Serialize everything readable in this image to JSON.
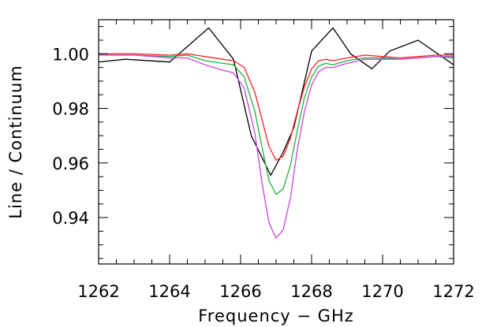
{
  "chart_data": {
    "type": "line",
    "title": "",
    "xlabel": "Frequency − GHz",
    "ylabel": "Line / Continuum",
    "xlim": [
      1262,
      1272
    ],
    "ylim": [
      0.923,
      1.0125
    ],
    "x_ticks": [
      1262,
      1264,
      1266,
      1268,
      1270,
      1272
    ],
    "x_tick_labels": [
      "1262",
      "1264",
      "1266",
      "1268",
      "1270",
      "1272"
    ],
    "y_ticks": [
      0.94,
      0.96,
      0.98,
      1.0
    ],
    "y_tick_labels": [
      "0.94",
      "0.96",
      "0.98",
      "1.00"
    ],
    "grid": false,
    "legend": "none",
    "series": [
      {
        "color": "#000000",
        "x": [
          1262.0,
          1262.75,
          1264.0,
          1265.1,
          1265.8,
          1266.3,
          1266.85,
          1267.2,
          1267.5,
          1268.0,
          1268.6,
          1269.1,
          1269.7,
          1270.2,
          1271.0,
          1272.0
        ],
        "y": [
          0.997,
          0.998,
          0.997,
          1.0095,
          0.998,
          0.97,
          0.9555,
          0.964,
          0.973,
          1.001,
          1.0095,
          1.0,
          0.9945,
          1.001,
          1.005,
          0.996
        ]
      },
      {
        "color": "#ff2020",
        "x": [
          1262.0,
          1263.0,
          1264.0,
          1264.5,
          1265.0,
          1265.5,
          1265.8,
          1266.1,
          1266.4,
          1266.6,
          1266.8,
          1267.0,
          1267.2,
          1267.4,
          1267.6,
          1267.8,
          1268.0,
          1268.2,
          1268.4,
          1268.6,
          1269.0,
          1269.5,
          1270.0,
          1270.5,
          1271.0,
          1271.5,
          1272.0
        ],
        "y": [
          1.0,
          1.0,
          0.9995,
          1.0,
          0.999,
          0.998,
          0.9975,
          0.995,
          0.986,
          0.976,
          0.966,
          0.961,
          0.9625,
          0.969,
          0.979,
          0.988,
          0.9945,
          0.9975,
          0.998,
          0.9975,
          0.9985,
          0.9995,
          0.999,
          0.9985,
          0.999,
          0.9995,
          0.9995
        ]
      },
      {
        "color": "#20b040",
        "x": [
          1262.0,
          1263.0,
          1264.0,
          1264.5,
          1265.0,
          1265.5,
          1265.8,
          1266.1,
          1266.4,
          1266.6,
          1266.8,
          1267.0,
          1267.2,
          1267.4,
          1267.6,
          1267.8,
          1268.0,
          1268.2,
          1268.4,
          1268.6,
          1269.0,
          1269.5,
          1270.0,
          1270.5,
          1271.0,
          1271.5,
          1272.0
        ],
        "y": [
          0.9995,
          0.9995,
          0.999,
          0.9995,
          0.9975,
          0.9965,
          0.996,
          0.9915,
          0.979,
          0.966,
          0.9535,
          0.9485,
          0.9505,
          0.959,
          0.972,
          0.984,
          0.9915,
          0.9955,
          0.9965,
          0.996,
          0.9975,
          0.9985,
          0.9985,
          0.998,
          0.9985,
          0.999,
          0.9985
        ]
      },
      {
        "color": "#cc44dd",
        "x": [
          1262.0,
          1263.0,
          1264.0,
          1264.5,
          1265.0,
          1265.5,
          1265.8,
          1266.1,
          1266.4,
          1266.6,
          1266.8,
          1267.0,
          1267.2,
          1267.4,
          1267.6,
          1267.8,
          1268.0,
          1268.2,
          1268.4,
          1268.6,
          1269.0,
          1269.5,
          1270.0,
          1270.5,
          1271.0,
          1271.5,
          1272.0
        ],
        "y": [
          0.9995,
          0.9995,
          0.9985,
          0.9985,
          0.996,
          0.994,
          0.993,
          0.9875,
          0.971,
          0.953,
          0.938,
          0.9325,
          0.9355,
          0.947,
          0.965,
          0.979,
          0.9885,
          0.9935,
          0.995,
          0.995,
          0.9965,
          0.998,
          0.998,
          0.998,
          0.9985,
          0.999,
          0.999
        ]
      }
    ]
  }
}
